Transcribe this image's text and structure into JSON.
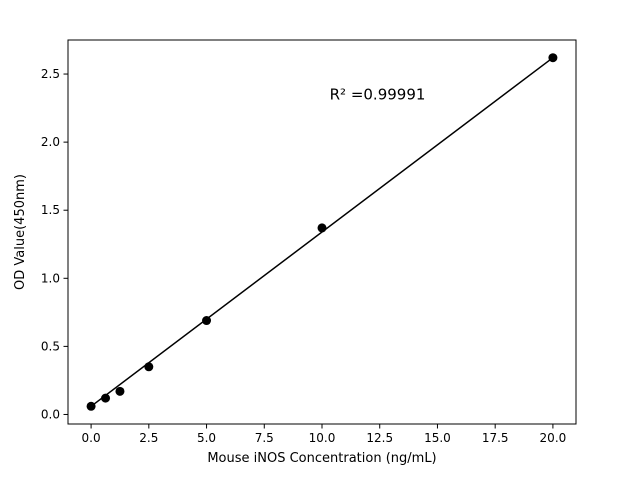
{
  "figure": {
    "background": "#ffffff",
    "foreground": "#000000"
  },
  "chart_data": {
    "type": "scatter",
    "title": "",
    "xlabel": "Mouse iNOS Concentration (ng/mL)",
    "ylabel": "OD Value(450nm)",
    "points": {
      "x": [
        0,
        0.625,
        1.25,
        2.5,
        5,
        10,
        20
      ],
      "y": [
        0.06,
        0.12,
        0.17,
        0.35,
        0.69,
        1.37,
        2.62
      ]
    },
    "fit_line": {
      "x": [
        0,
        20
      ],
      "y": [
        0.06,
        2.62
      ]
    },
    "annotation": {
      "text": "R² =0.99991",
      "ax": 0.515,
      "ay": 0.155
    },
    "xlim": [
      -1,
      21
    ],
    "ylim": [
      -0.07,
      2.75
    ],
    "xticks": [
      0.0,
      2.5,
      5.0,
      7.5,
      10.0,
      12.5,
      15.0,
      17.5,
      20.0
    ],
    "xtick_labels": [
      "0.0",
      "2.5",
      "5.0",
      "7.5",
      "10.0",
      "12.5",
      "15.0",
      "17.5",
      "20.0"
    ],
    "yticks": [
      0.0,
      0.5,
      1.0,
      1.5,
      2.0,
      2.5
    ],
    "ytick_labels": [
      "0.0",
      "0.5",
      "1.0",
      "1.5",
      "2.0",
      "2.5"
    ],
    "grid": false,
    "legend": null,
    "marker_color": "#000000",
    "line_color": "#000000"
  }
}
